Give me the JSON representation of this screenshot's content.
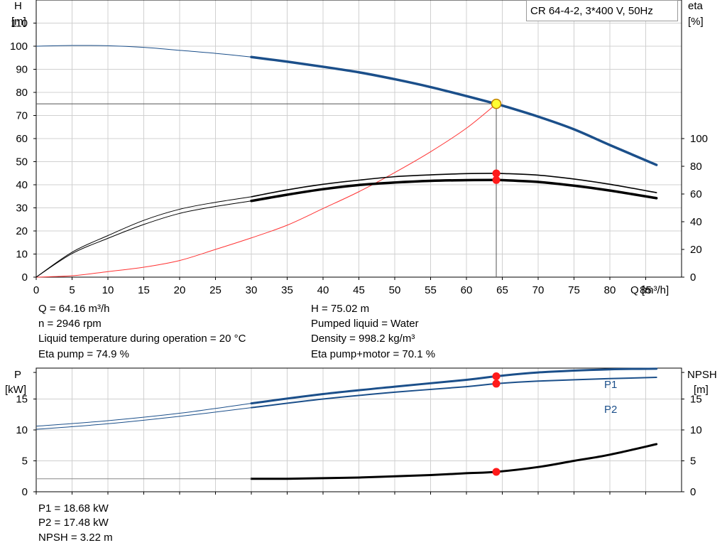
{
  "legend_box": "CR 64-4-2, 3*400 V, 50Hz",
  "colors": {
    "head_curve": "#1b4f8a",
    "power_curve": "#1b4f8a",
    "system_curve": "#ff3333",
    "efficiency_curve": "#000000",
    "npsh_curve": "#000000",
    "operating_point": "#ff1a1a",
    "duty_point_fill": "#ffff33",
    "grid": "#d0d0d0"
  },
  "top_params": [
    {
      "text": "Q = 64.16 m³/h"
    },
    {
      "text": "n = 2946 rpm"
    },
    {
      "text": "Liquid temperature during operation = 20 °C"
    },
    {
      "text": "Eta pump = 74.9 %"
    },
    {
      "text": "H = 75.02 m"
    },
    {
      "text": "Pumped liquid = Water"
    },
    {
      "text": "Density = 998.2 kg/m³"
    },
    {
      "text": "Eta pump+motor = 70.1 %"
    }
  ],
  "bottom_params": [
    {
      "text": "P1 = 18.68 kW"
    },
    {
      "text": "P2 = 17.48 kW"
    },
    {
      "text": "NPSH = 3.22 m"
    }
  ],
  "chart_data": [
    {
      "type": "line",
      "axes": {
        "xlabel": "Q [m³/h]",
        "xticks": [
          0,
          5,
          10,
          15,
          20,
          25,
          30,
          35,
          40,
          45,
          50,
          55,
          60,
          65,
          70,
          75,
          80,
          85
        ],
        "xlim": [
          0,
          90
        ],
        "ylabel_left": [
          "H",
          "[m]"
        ],
        "yticks_left": [
          0,
          10,
          20,
          30,
          40,
          50,
          60,
          70,
          80,
          90,
          100,
          110
        ],
        "ylim_left": [
          0,
          120
        ],
        "ylabel_right": [
          "eta",
          "[%]"
        ],
        "yticks_right": [
          0,
          20,
          40,
          60,
          80,
          100
        ],
        "ylim_right": [
          0,
          200
        ],
        "grid": true
      },
      "series": [
        {
          "key": "head_curve",
          "axis": "left",
          "role": "curve",
          "x": [
            0,
            5,
            10,
            15,
            20,
            25,
            30,
            35,
            40,
            45,
            50,
            55,
            60,
            64.16,
            65,
            70,
            75,
            80,
            86.5
          ],
          "y": [
            100,
            100.3,
            100.2,
            99.5,
            98.2,
            96.9,
            95.3,
            93.3,
            91.1,
            88.7,
            85.7,
            82.3,
            78.4,
            75.02,
            74.3,
            69.5,
            64,
            57.2,
            48.6
          ],
          "thin_until_x": 30,
          "stroke": 3.5
        },
        {
          "key": "system_curve",
          "axis": "left",
          "role": "curve",
          "x": [
            0,
            5,
            10,
            15,
            20,
            25,
            30,
            35,
            40,
            45,
            50,
            55,
            60,
            64.16
          ],
          "y": [
            0,
            0.6,
            2.4,
            4.3,
            7.2,
            12,
            17,
            22.5,
            29.7,
            37,
            45.3,
            54.3,
            64.5,
            75.02
          ],
          "stroke": 1
        },
        {
          "key": "eta_pump",
          "axis": "right",
          "role": "curve",
          "x": [
            0,
            5,
            10,
            15,
            20,
            25,
            30,
            35,
            40,
            45,
            50,
            55,
            60,
            64.16,
            65,
            70,
            75,
            80,
            86.5
          ],
          "y": [
            0,
            18,
            30,
            41,
            49,
            54,
            58,
            63,
            67,
            70,
            72.5,
            73.8,
            74.7,
            74.9,
            74.8,
            73.6,
            70.8,
            67,
            61
          ],
          "thin_until_x": 30,
          "stroke": 1.6
        },
        {
          "key": "eta_pump_motor",
          "axis": "right",
          "role": "curve",
          "x": [
            0,
            5,
            10,
            15,
            20,
            25,
            30,
            35,
            40,
            45,
            50,
            55,
            60,
            64.16,
            65,
            70,
            75,
            80,
            86.5
          ],
          "y": [
            0,
            17,
            28,
            38,
            46,
            51,
            55,
            59.5,
            63.5,
            66.5,
            68.3,
            69.5,
            70,
            70.1,
            70,
            68.7,
            66,
            62.5,
            57
          ],
          "thin_until_x": 30,
          "stroke": 3.5
        }
      ],
      "duty_point": {
        "x": 64.16,
        "y": 75.02,
        "eta_pump": 74.9,
        "eta_pump_motor": 70.1
      }
    },
    {
      "type": "line",
      "axes": {
        "xlim": [
          0,
          90
        ],
        "xticks": [
          0,
          5,
          10,
          15,
          20,
          25,
          30,
          35,
          40,
          45,
          50,
          55,
          60,
          65,
          70,
          75,
          80,
          85
        ],
        "ylabel_left": [
          "P",
          "[kW]"
        ],
        "yticks_left": [
          0,
          5,
          10,
          15
        ],
        "ylim_left": [
          0,
          20
        ],
        "ylabel_right": [
          "NPSH",
          "[m]"
        ],
        "yticks_right": [
          0,
          5,
          10,
          15
        ],
        "ylim_right": [
          0,
          20
        ],
        "grid": true
      },
      "series": [
        {
          "key": "P1",
          "name": "P1",
          "axis": "left",
          "role": "curve",
          "x": [
            0,
            10,
            20,
            30,
            40,
            50,
            60,
            64.16,
            70,
            80,
            86.5
          ],
          "y": [
            10.6,
            11.5,
            12.7,
            14.3,
            15.8,
            17,
            18.1,
            18.68,
            19.3,
            19.8,
            19.9
          ],
          "thin_until_x": 30,
          "stroke": 3
        },
        {
          "key": "P2",
          "name": "P2",
          "axis": "left",
          "role": "curve",
          "x": [
            0,
            10,
            20,
            30,
            40,
            50,
            60,
            64.16,
            70,
            80,
            86.5
          ],
          "y": [
            10.1,
            11,
            12.2,
            13.6,
            15,
            16.1,
            17,
            17.48,
            17.9,
            18.3,
            18.5
          ],
          "thin_until_x": 30,
          "stroke": 2
        },
        {
          "key": "npsh",
          "axis": "right",
          "role": "curve",
          "x": [
            30,
            35,
            40,
            45,
            50,
            55,
            60,
            64.16,
            70,
            75,
            80,
            86.5
          ],
          "y": [
            2.1,
            2.1,
            2.2,
            2.3,
            2.5,
            2.7,
            3.0,
            3.22,
            4.0,
            5.0,
            6.0,
            7.7
          ],
          "stroke": 3
        },
        {
          "key": "npsh_extension",
          "axis": "right",
          "role": "reference",
          "x": [
            0,
            30
          ],
          "y": [
            2.1,
            2.1
          ],
          "stroke": 1
        }
      ],
      "operating_points": {
        "x": 64.16,
        "P1": 18.68,
        "P2": 17.48,
        "npsh": 3.22
      }
    }
  ]
}
